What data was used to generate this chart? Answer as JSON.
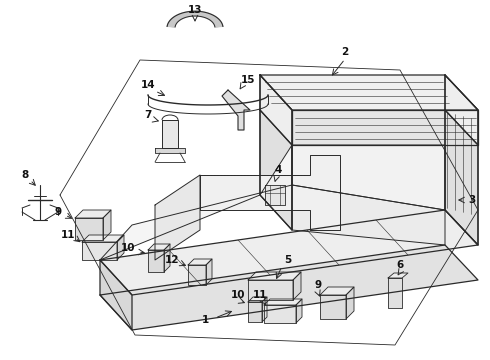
{
  "bg_color": "#ffffff",
  "lc": "#2a2a2a",
  "lw": 0.8,
  "fontsize": 7.5,
  "arrow_lw": 0.7,
  "figsize": [
    4.9,
    3.6
  ],
  "dpi": 100
}
